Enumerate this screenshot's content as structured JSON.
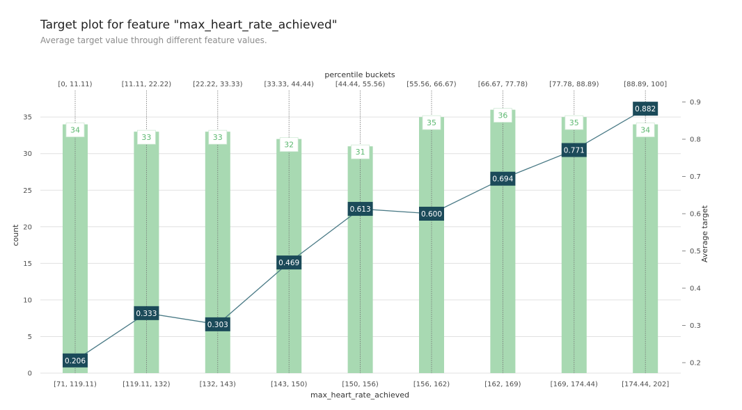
{
  "title": "Target plot for feature \"max_heart_rate_achieved\"",
  "subtitle": "Average target value through different feature values.",
  "chart_data": {
    "type": "bar",
    "top_axis_label": "percentile buckets",
    "top_categories": [
      "[0, 11.11)",
      "[11.11, 22.22)",
      "[22.22, 33.33)",
      "[33.33, 44.44)",
      "[44.44, 55.56)",
      "[55.56, 66.67)",
      "[66.67, 77.78)",
      "[77.78, 88.89)",
      "[88.89, 100]"
    ],
    "categories": [
      "[71, 119.11)",
      "[119.11, 132)",
      "[132, 143)",
      "[143, 150)",
      "[150, 156)",
      "[156, 162)",
      "[162, 169)",
      "[169, 174.44)",
      "[174.44, 202]"
    ],
    "xlabel": "max_heart_rate_achieved",
    "ylabel": "count",
    "y2label": "Average target",
    "ylim": [
      0,
      38
    ],
    "y2lim": [
      0.165,
      0.915
    ],
    "yticks": [
      "0",
      "5",
      "10",
      "15",
      "20",
      "25",
      "30",
      "35"
    ],
    "y2ticks": [
      "0.2",
      "0.3",
      "0.4",
      "0.5",
      "0.6",
      "0.7",
      "0.8",
      "0.9"
    ],
    "grid": true,
    "series": [
      {
        "name": "count",
        "type": "bar",
        "color": "#a8d9b2",
        "label_color": "#5cb870",
        "values": [
          34,
          33,
          33,
          32,
          31,
          35,
          36,
          35,
          34
        ]
      },
      {
        "name": "Average target",
        "type": "line",
        "color": "#4a7a86",
        "label_bg": "#1b4a59",
        "values": [
          0.206,
          0.333,
          0.303,
          0.469,
          0.613,
          0.6,
          0.694,
          0.771,
          0.882
        ],
        "labels": [
          "0.206",
          "0.333",
          "0.303",
          "0.469",
          "0.613",
          "0.600",
          "0.694",
          "0.771",
          "0.882"
        ]
      }
    ]
  }
}
